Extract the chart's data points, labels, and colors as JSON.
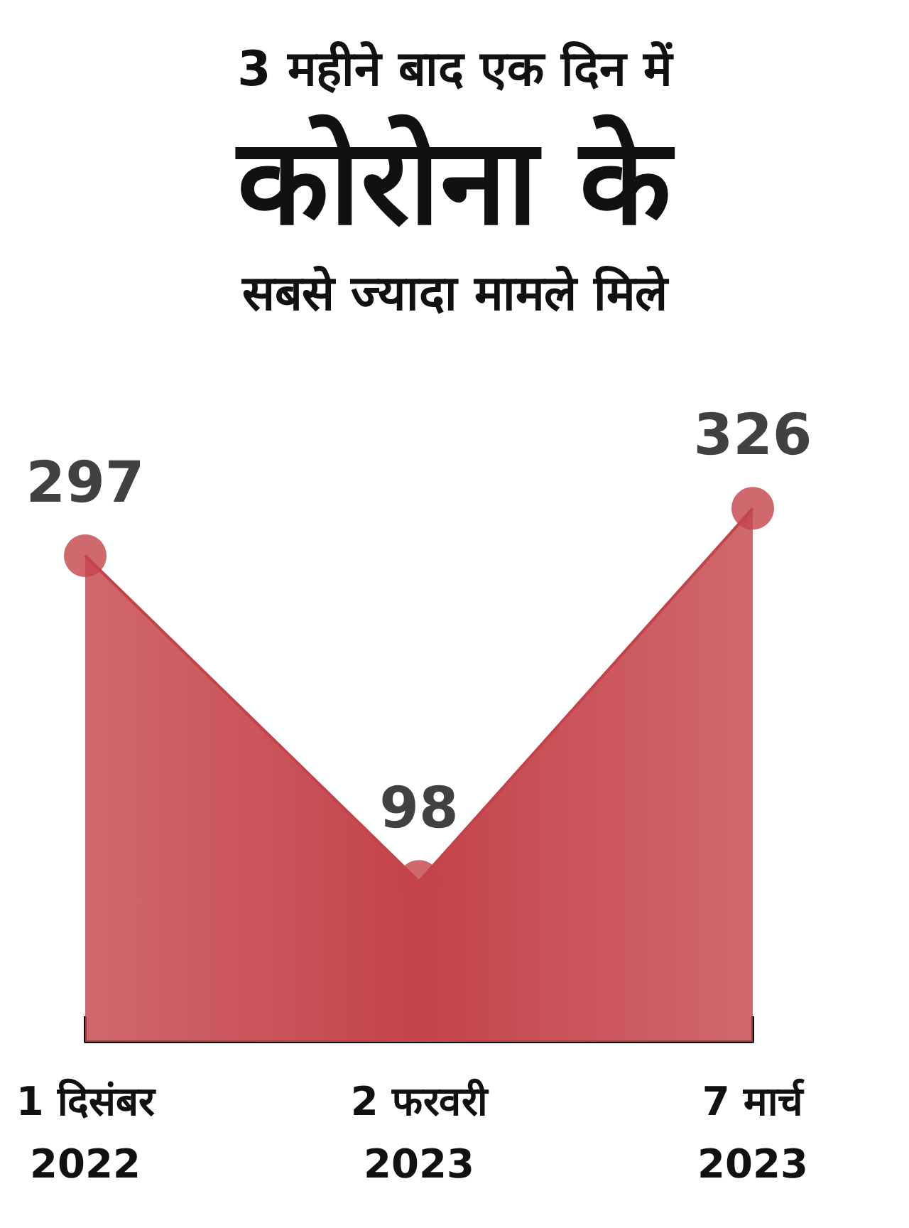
{
  "chart_data": {
    "type": "area",
    "title": "3 महीने बाद एक दिन में\nकोरोना के\nसबसे ज्यादा मामले मिले",
    "categories": [
      "1 दिसंबर\n2022",
      "2 फरवरी\n2023",
      "7 मार्च\n2023"
    ],
    "series": [
      {
        "color": "#c4434a",
        "values": [
          297,
          98,
          326
        ],
        "value_labels": [
          "297",
          "98",
          "326"
        ]
      }
    ],
    "marker": "circle",
    "grid": false
  }
}
